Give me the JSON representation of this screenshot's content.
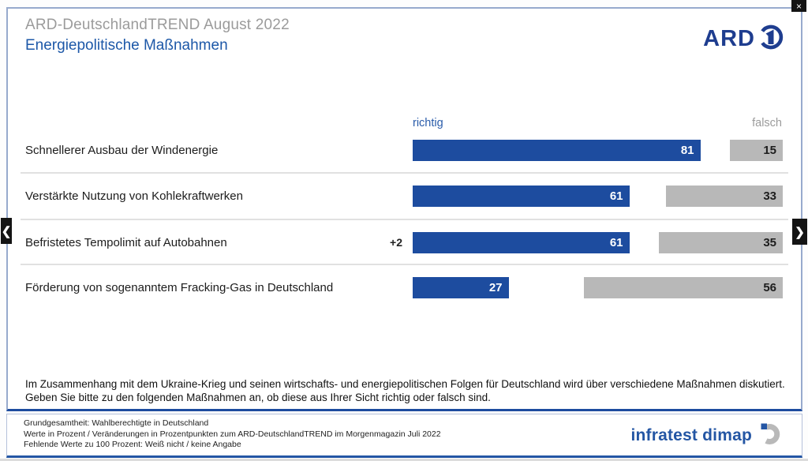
{
  "window": {
    "close_glyph": "×"
  },
  "nav": {
    "prev_glyph": "❮",
    "next_glyph": "❯"
  },
  "header": {
    "title": "ARD-DeutschlandTREND August 2022",
    "subtitle": "Energiepolitische Maßnahmen",
    "ard_logo_text": "ARD"
  },
  "chart_data": {
    "type": "bar",
    "orientation": "horizontal",
    "unit": "percent",
    "xmax": 100,
    "column_labels": {
      "positive": "richtig",
      "negative": "falsch"
    },
    "categories": [
      "Schnellerer Ausbau der Windenergie",
      "Verstärkte Nutzung von Kohlekraftwerken",
      "Befristetes Tempolimit auf Autobahnen",
      "Förderung von sogenanntem Fracking-Gas in Deutschland"
    ],
    "series": [
      {
        "name": "richtig",
        "color": "#1d4c9f",
        "values": [
          81,
          61,
          61,
          27
        ]
      },
      {
        "name": "falsch",
        "color": "#b8b8b8",
        "values": [
          15,
          33,
          35,
          56
        ]
      }
    ],
    "changes": [
      "",
      "",
      "+2",
      ""
    ],
    "legend_position": "top",
    "grid": false
  },
  "question": "Im Zusammenhang mit dem Ukraine-Krieg und seinen wirtschafts- und energiepolitischen Folgen für Deutschland wird über verschiedene Maßnahmen diskutiert. Geben Sie bitte zu den folgenden Maßnahmen an, ob diese aus Ihrer Sicht richtig oder falsch sind.",
  "footer": {
    "notes": [
      "Grundgesamtheit: Wahlberechtigte in Deutschland",
      "Werte in Prozent / Veränderungen in Prozentpunkten zum ARD-DeutschlandTREND im Morgenmagazin Juli 2022",
      "Fehlende Werte zu 100 Prozent: Weiß nicht / keine Angabe"
    ],
    "brand": "infratest dimap"
  },
  "colors": {
    "bar_positive": "#1d4c9f",
    "bar_negative": "#b8b8b8",
    "subtitle": "#1d58a8",
    "title_gray": "#9b9b9b",
    "panel_border": "#97aacd",
    "footer_accent": "#2456a4"
  }
}
